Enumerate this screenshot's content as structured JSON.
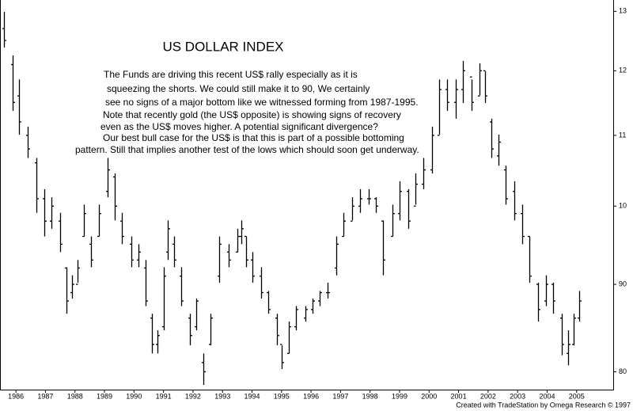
{
  "chart_data": {
    "type": "ohlc",
    "title": "US DOLLAR INDEX",
    "annotation_lines": [
      "The Funds are driving this recent US$ rally especially as it is",
      "squeezing the shorts. We could still make it to 90, We certainly",
      "see no signs of a major bottom like we witnessed forming from 1987-1995.",
      "Note that recently gold  (the US$ opposite) is showing signs of recovery",
      "even as the US$ moves higher. A potential significant divergence?",
      "Our best bull case for the US$ is that this is part of a possible bottoming",
      "pattern. Still that implies another test of the lows which should soon get underway."
    ],
    "footer": "Created with TradeStation by Omega Research © 1997",
    "color": "#000000",
    "log_scale": true,
    "xlim": [
      1985.46,
      2006.24
    ],
    "xticks": [
      1986,
      1987,
      1988,
      1989,
      1990,
      1991,
      1992,
      1993,
      1994,
      1995,
      1996,
      1997,
      1998,
      1999,
      2000,
      2001,
      2002,
      2003,
      2004,
      2005
    ],
    "ylim": [
      78.1,
      132
    ],
    "yticks": [
      80,
      90,
      {
        "value": 100,
        "label": "10"
      },
      {
        "value": 110,
        "label": "11"
      },
      {
        "value": 120,
        "label": "12"
      },
      {
        "value": 130,
        "label": "13"
      }
    ],
    "x": [
      1985.6,
      1985.9,
      1986.1,
      1986.4,
      1986.7,
      1986.95,
      1987.2,
      1987.5,
      1987.7,
      1987.9,
      1988.1,
      1988.3,
      1988.55,
      1988.8,
      1989.1,
      1989.35,
      1989.6,
      1989.9,
      1990.15,
      1990.4,
      1990.6,
      1990.8,
      1991.0,
      1991.15,
      1991.35,
      1991.6,
      1991.9,
      1992.1,
      1992.35,
      1992.6,
      1992.9,
      1993.2,
      1993.5,
      1993.65,
      1993.8,
      1994.0,
      1994.3,
      1994.55,
      1994.85,
      1995.0,
      1995.25,
      1995.5,
      1995.8,
      1996.05,
      1996.3,
      1996.55,
      1996.85,
      1997.1,
      1997.4,
      1997.65,
      1997.95,
      1998.2,
      1998.45,
      1998.75,
      1999.0,
      1999.3,
      1999.55,
      1999.8,
      2000.1,
      2000.35,
      2000.6,
      2000.9,
      2001.15,
      2001.45,
      2001.7,
      2001.9,
      2002.1,
      2002.35,
      2002.6,
      2002.9,
      2003.15,
      2003.4,
      2003.7,
      2003.95,
      2004.2,
      2004.5,
      2004.7,
      2004.9,
      2005.1
    ],
    "open": [
      127,
      121,
      116,
      110,
      106,
      101,
      98,
      98,
      92,
      89,
      90,
      96,
      95,
      96,
      102,
      104,
      98,
      95,
      93,
      92,
      86,
      83,
      85,
      94,
      95,
      91,
      86,
      85,
      81,
      83,
      91,
      94,
      94,
      96,
      96,
      93,
      91,
      89,
      86,
      83,
      82,
      85,
      86,
      87,
      88,
      89,
      92,
      96,
      98,
      100,
      101,
      101,
      98,
      96,
      99,
      102,
      100,
      103,
      105,
      110,
      117,
      115,
      117,
      119,
      116,
      120,
      112,
      107,
      105,
      102,
      99,
      96,
      90,
      88,
      90,
      86,
      82,
      83,
      86
    ],
    "high": [
      129.9,
      122.5,
      118.6,
      111.3,
      106.7,
      102.3,
      101.2,
      99.1,
      92.1,
      91.1,
      93.0,
      100.2,
      96.0,
      100.2,
      106.7,
      104.5,
      99.1,
      96.0,
      95.0,
      93.0,
      86.5,
      84.6,
      92.1,
      98.1,
      96.0,
      92.1,
      86.5,
      88.3,
      82.0,
      86.5,
      96.0,
      95.0,
      97.0,
      98.1,
      96.0,
      94.0,
      92.1,
      89.2,
      86.5,
      82.9,
      85.6,
      87.4,
      87.4,
      88.3,
      89.2,
      90.2,
      96.0,
      99.1,
      101.2,
      102.3,
      102.3,
      101.2,
      98.1,
      100.2,
      103.4,
      102.3,
      104.5,
      106.7,
      111.3,
      118.6,
      118.6,
      118.6,
      121.6,
      118.6,
      121.2,
      119.9,
      112.5,
      110.1,
      105.6,
      103.4,
      100.2,
      96.0,
      90.2,
      91.1,
      90.2,
      86.5,
      84.6,
      86.5,
      89.2
    ],
    "low": [
      123.8,
      113.7,
      110.1,
      106.7,
      99.1,
      96.0,
      97.0,
      94.0,
      86.5,
      88.3,
      90.2,
      96.0,
      92.1,
      96.0,
      101.2,
      98.1,
      95.0,
      92.1,
      92.1,
      87.4,
      82.0,
      82.0,
      84.6,
      93.0,
      92.1,
      87.4,
      82.9,
      84.6,
      78.6,
      82.9,
      90.2,
      92.1,
      94.0,
      95.0,
      92.1,
      90.2,
      88.3,
      86.5,
      82.9,
      80.3,
      82.0,
      84.6,
      85.6,
      86.5,
      87.4,
      88.3,
      91.1,
      96.0,
      98.1,
      99.1,
      100.2,
      99.1,
      91.1,
      96.0,
      98.1,
      97.0,
      100.2,
      102.3,
      104.5,
      110.1,
      113.7,
      112.5,
      114.9,
      113.7,
      116.1,
      114.9,
      106.7,
      105.6,
      100.2,
      98.1,
      95.0,
      90.2,
      85.6,
      87.4,
      86.5,
      81.8,
      80.7,
      82.9,
      85.6
    ],
    "close": [
      125,
      115,
      112,
      108,
      101,
      98,
      100,
      95,
      88,
      90,
      92,
      99,
      93,
      99,
      105,
      100,
      96,
      93,
      94,
      88,
      83,
      84,
      91,
      97,
      93,
      88,
      84,
      88,
      80,
      86,
      95,
      93,
      96,
      97,
      93,
      91,
      89,
      87,
      84,
      81,
      85,
      87,
      87,
      88,
      89,
      89,
      95,
      98,
      100,
      101,
      101,
      100,
      93,
      99,
      102,
      98,
      103,
      105,
      110,
      117,
      115,
      117,
      120,
      115,
      120,
      116,
      108,
      109,
      101,
      99,
      96,
      91,
      87,
      90,
      88,
      83,
      83,
      86,
      88
    ]
  }
}
